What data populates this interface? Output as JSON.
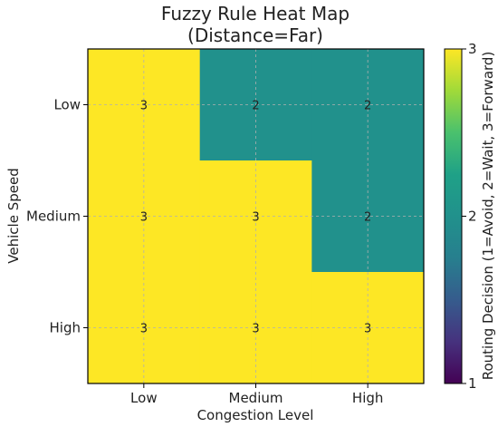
{
  "chart_data": {
    "type": "heatmap",
    "title": "Fuzzy Rule Heat Map",
    "subtitle": "(Distance=Far)",
    "xlabel": "Congestion Level",
    "ylabel": "Vehicle Speed",
    "x_categories": [
      "Low",
      "Medium",
      "High"
    ],
    "y_categories": [
      "Low",
      "Medium",
      "High"
    ],
    "values": [
      [
        3,
        2,
        2
      ],
      [
        3,
        3,
        2
      ],
      [
        3,
        3,
        3
      ]
    ],
    "cell_labels": [
      [
        "3",
        "2",
        "2"
      ],
      [
        "3",
        "3",
        "2"
      ],
      [
        "3",
        "3",
        "3"
      ]
    ],
    "colorbar": {
      "label": "Routing Decision (1=Avoid, 2=Wait, 3=Forward)",
      "range": [
        1,
        3
      ],
      "ticks": [
        "1",
        "2",
        "3"
      ],
      "colormap": "viridis"
    },
    "grid": true,
    "colors": {
      "value_1": "#440154",
      "value_2": "#21918c",
      "value_3": "#fde725"
    }
  }
}
